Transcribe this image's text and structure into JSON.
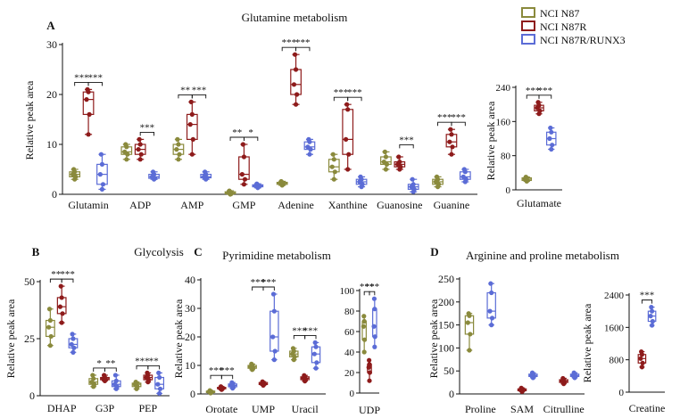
{
  "legend": {
    "items": [
      {
        "label": "NCI N87",
        "color": "#8a8a3c"
      },
      {
        "label": "NCI N87R",
        "color": "#8e1b1b"
      },
      {
        "label": "NCI N87R/RUNX3",
        "color": "#5b6cd6"
      }
    ]
  },
  "chart_data": [
    {
      "type": "box",
      "panel": "A",
      "title": "Glutamine metabolism",
      "ylabel": "Relative peak area",
      "ylim": [
        0,
        30
      ],
      "yticks": [
        0,
        10,
        20,
        30
      ],
      "categories": [
        "Glutamin",
        "ADP",
        "AMP",
        "GMP",
        "Adenine",
        "Xanthine",
        "Guanosine",
        "Guanine"
      ],
      "series": [
        {
          "name": "NCI N87",
          "values": [
            [
              3,
              3.5,
              4,
              4.5,
              5
            ],
            [
              7,
              8,
              8.5,
              9.5,
              10
            ],
            [
              7,
              8,
              9,
              10,
              11
            ],
            [
              0,
              0.1,
              0.3,
              0.5,
              0.7
            ],
            [
              1.8,
              2,
              2.2,
              2.4,
              2.6
            ],
            [
              3,
              4.5,
              5.5,
              7,
              8
            ],
            [
              5,
              6,
              6.5,
              7.5,
              8.5
            ],
            [
              1.5,
              2,
              2.5,
              3,
              3.5
            ]
          ]
        },
        {
          "name": "NCI N87R",
          "values": [
            [
              12,
              16,
              19,
              20.5,
              21
            ],
            [
              7,
              8,
              9,
              10,
              11
            ],
            [
              8,
              11,
              14,
              16,
              18.5
            ],
            [
              2,
              3,
              4,
              7.5,
              10
            ],
            [
              18,
              20,
              22,
              25,
              28
            ],
            [
              5,
              8,
              11,
              17,
              18
            ],
            [
              5,
              5.5,
              6,
              6.5,
              7.5
            ],
            [
              8,
              9.5,
              10.5,
              12,
              13
            ]
          ]
        },
        {
          "name": "NCI N87R/RUNX3",
          "values": [
            [
              1,
              2,
              4,
              6,
              8
            ],
            [
              3,
              3.2,
              3.5,
              4,
              4.5
            ],
            [
              3,
              3.3,
              3.5,
              4,
              4.5
            ],
            [
              1.3,
              1.5,
              1.7,
              1.9,
              2.1
            ],
            [
              8,
              9,
              9.5,
              10.5,
              11
            ],
            [
              1.5,
              2,
              2.5,
              3,
              3.5
            ],
            [
              0.5,
              1,
              1.5,
              2,
              3
            ],
            [
              2.5,
              3,
              3.5,
              4.5,
              5
            ]
          ]
        }
      ],
      "significance": [
        [
          "***",
          "***"
        ],
        [
          "",
          "***"
        ],
        [
          "**",
          "***"
        ],
        [
          "**",
          "*"
        ],
        [
          "***",
          "***"
        ],
        [
          "***",
          "***"
        ],
        [
          "",
          "***"
        ],
        [
          "***",
          "***"
        ]
      ]
    },
    {
      "type": "box",
      "panel": "A",
      "ylabel": "Relative peak area",
      "ylim": [
        0,
        240
      ],
      "yticks": [
        0,
        80,
        160,
        240
      ],
      "categories": [
        "Glutamate"
      ],
      "series": [
        {
          "name": "NCI N87",
          "values": [
            [
              20,
              22,
              25,
              28,
              30
            ]
          ]
        },
        {
          "name": "NCI N87R",
          "values": [
            [
              178,
              185,
              192,
              198,
              205
            ]
          ]
        },
        {
          "name": "NCI N87R/RUNX3",
          "values": [
            [
              95,
              105,
              120,
              135,
              145
            ]
          ]
        }
      ],
      "significance": [
        [
          "***",
          "***"
        ]
      ]
    },
    {
      "type": "box",
      "panel": "B",
      "title": "Glycolysis",
      "ylabel": "Relative peak area",
      "ylim": [
        0,
        50
      ],
      "yticks": [
        0,
        25,
        50
      ],
      "categories": [
        "DHAP",
        "G3P",
        "PEP"
      ],
      "series": [
        {
          "name": "NCI N87",
          "values": [
            [
              22,
              26,
              30,
              33,
              38
            ],
            [
              4,
              5,
              6,
              7.5,
              9
            ],
            [
              3,
              4,
              5,
              5.5,
              6
            ]
          ]
        },
        {
          "name": "NCI N87R",
          "values": [
            [
              32,
              36,
              39,
              43,
              48
            ],
            [
              6.5,
              7,
              7.5,
              8,
              9
            ],
            [
              6,
              7,
              8,
              9,
              10
            ]
          ]
        },
        {
          "name": "NCI N87R/RUNX3",
          "values": [
            [
              19,
              21,
              22.5,
              25,
              27
            ],
            [
              3,
              4,
              5,
              6.5,
              9
            ],
            [
              1,
              3,
              5,
              8,
              10
            ]
          ]
        }
      ],
      "significance": [
        [
          "**",
          "***"
        ],
        [
          "*",
          "**"
        ],
        [
          "***",
          "**"
        ]
      ]
    },
    {
      "type": "box",
      "panel": "C",
      "title": "Pyrimidine metabolism",
      "ylabel": "Relative peak area",
      "ylim": [
        0,
        40
      ],
      "yticks": [
        0,
        10,
        20,
        30,
        40
      ],
      "categories": [
        "Orotate",
        "UMP",
        "Uracil"
      ],
      "series": [
        {
          "name": "NCI N87",
          "values": [
            [
              0.3,
              0.5,
              0.8,
              1,
              1.2
            ],
            [
              8.5,
              9,
              9.5,
              10,
              10.5
            ],
            [
              12,
              13,
              14,
              15,
              16
            ]
          ]
        },
        {
          "name": "NCI N87R",
          "values": [
            [
              1.5,
              1.8,
              2,
              2.3,
              2.6
            ],
            [
              3,
              3.3,
              3.6,
              4,
              4.3
            ],
            [
              4.5,
              5,
              5.5,
              6,
              6.5
            ]
          ]
        },
        {
          "name": "NCI N87R/RUNX3",
          "values": [
            [
              2,
              2.5,
              3,
              3.5,
              4
            ],
            [
              12,
              15,
              20,
              29,
              35
            ],
            [
              9,
              11,
              14,
              16.5,
              18
            ]
          ]
        }
      ],
      "significance": [
        [
          "***",
          "***"
        ],
        [
          "***",
          "***"
        ],
        [
          "***",
          "***"
        ]
      ]
    },
    {
      "type": "box",
      "panel": "C",
      "ylabel": "",
      "ylim": [
        0,
        100
      ],
      "yticks": [
        0,
        20,
        40,
        60,
        80,
        100
      ],
      "categories": [
        "UDP"
      ],
      "series": [
        {
          "name": "NCI N87",
          "values": [
            [
              40,
              52,
              65,
              70,
              75
            ]
          ]
        },
        {
          "name": "NCI N87R",
          "values": [
            [
              12,
              20,
              25,
              28,
              32
            ]
          ]
        },
        {
          "name": "NCI N87R/RUNX3",
          "values": [
            [
              45,
              55,
              65,
              82,
              92
            ]
          ]
        }
      ],
      "significance": [
        [
          "***",
          "***"
        ]
      ]
    },
    {
      "type": "box",
      "panel": "D",
      "title": "Arginine and proline metabolism",
      "ylabel": "Relative peak area",
      "ylim": [
        0,
        250
      ],
      "yticks": [
        0,
        50,
        100,
        150,
        200,
        250
      ],
      "categories": [
        "Proline",
        "SAM",
        "Citrulline"
      ],
      "series": [
        {
          "name": "NCI N87",
          "values": [
            [
              95,
              130,
              155,
              170,
              175
            ]
          ]
        },
        {
          "name": "NCI N87R",
          "values": [
            [
              5,
              7,
              9,
              11,
              13
            ],
            [
              22,
              25,
              28,
              31,
              34
            ]
          ]
        },
        {
          "name": "NCI N87R/RUNX3",
          "values": [
            [
              150,
              165,
              180,
              220,
              240
            ],
            [
              35,
              38,
              40,
              43,
              46
            ],
            [
              35,
              38,
              40,
              43,
              46
            ]
          ]
        }
      ],
      "series_categories": [
        [
          0
        ],
        [
          1,
          2
        ],
        [
          0,
          1,
          2
        ]
      ],
      "significance": [
        [
          "",
          "***"
        ],
        [
          "",
          "***"
        ],
        [
          "",
          "***"
        ]
      ]
    },
    {
      "type": "box",
      "panel": "D",
      "ylabel": "Relative peak area",
      "ylim": [
        0,
        2400
      ],
      "yticks": [
        0,
        800,
        1600,
        2400
      ],
      "categories": [
        "Creatine"
      ],
      "series": [
        {
          "name": "NCI N87R",
          "values": [
            [
              620,
              720,
              830,
              930,
              1000
            ]
          ]
        },
        {
          "name": "NCI N87R/RUNX3",
          "values": [
            [
              1650,
              1750,
              1880,
              2000,
              2100
            ]
          ]
        }
      ],
      "significance": [
        [
          "***"
        ]
      ]
    }
  ]
}
